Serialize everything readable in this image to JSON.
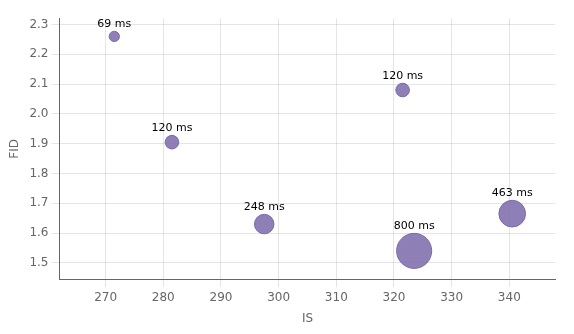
{
  "chart_data": {
    "type": "bubble",
    "x": [
      271.5,
      281.5,
      321.5,
      297.5,
      323.5,
      340.5
    ],
    "values": [
      2.26,
      1.905,
      2.08,
      1.63,
      1.54,
      1.665
    ],
    "sizes": [
      69,
      120,
      120,
      248,
      800,
      463
    ],
    "labels": [
      "69 ms",
      "120 ms",
      "120 ms",
      "248 ms",
      "800 ms",
      "463 ms"
    ],
    "color": "#7B68AA",
    "xlabel": "IS",
    "ylabel": "FID",
    "xlim": [
      262,
      348
    ],
    "ylim": [
      1.445,
      2.32
    ],
    "xticks": [
      270,
      280,
      290,
      300,
      310,
      320,
      330,
      340
    ],
    "yticks": [
      1.5,
      1.6,
      1.7,
      1.8,
      1.9,
      {
        "value": 2,
        "label": "2.0"
      },
      2.1,
      2.2,
      2.3
    ],
    "grid": true
  }
}
